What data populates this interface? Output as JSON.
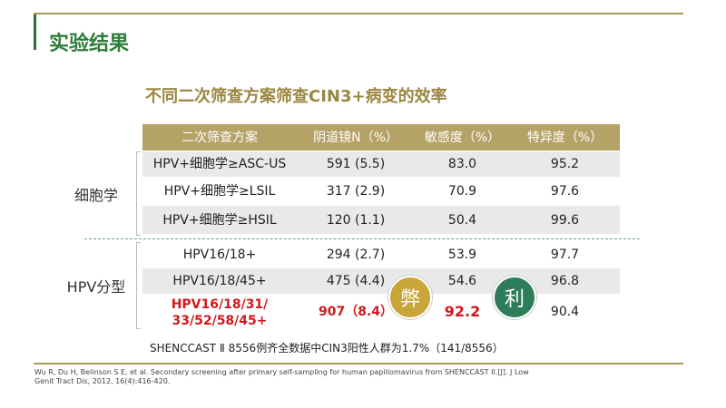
{
  "header": {
    "title": "实验结果"
  },
  "table": {
    "title": "不同二次筛查方案筛查CIN3+病变的效率",
    "columns": [
      "二次筛查方案",
      "阴道镜N（%）",
      "敏感度（%）",
      "特异度（%）"
    ],
    "groups": [
      {
        "label": "细胞学",
        "rows": [
          [
            [
              "HPV+细胞学≥ASC-US"
            ],
            "591 (5.5)",
            "83.0",
            "95.2"
          ],
          [
            [
              "HPV+细胞学≥LSIL"
            ],
            "317 (2.9)",
            "70.9",
            "97.6"
          ],
          [
            [
              "HPV+细胞学≥HSIL"
            ],
            "120 (1.1)",
            "50.4",
            "99.6"
          ]
        ]
      },
      {
        "label": "HPV分型",
        "rows": [
          [
            [
              "HPV16/18+"
            ],
            "294 (2.7)",
            "53.9",
            "97.7"
          ],
          [
            [
              "HPV16/18/45+"
            ],
            "475 (4.4)",
            "54.6",
            "96.8"
          ],
          [
            [
              "HPV16/18/31/",
              "33/52/58/45+"
            ],
            "907（8.4）",
            "92.2",
            "90.4"
          ]
        ]
      }
    ]
  },
  "badges": [
    "弊",
    "利"
  ],
  "note": "SHENCCAST Ⅱ 8556例齐全数据中CIN3阳性人群为1.7%（141/8556）",
  "reference": [
    "Wu R, Du H, Belinson S E, et al. Secondary screening after primary self-sampling for human papillomavirus from SHENCCAST II.[J]. J Low",
    "Genit Tract Dis, 2012, 16(4):416-420."
  ]
}
